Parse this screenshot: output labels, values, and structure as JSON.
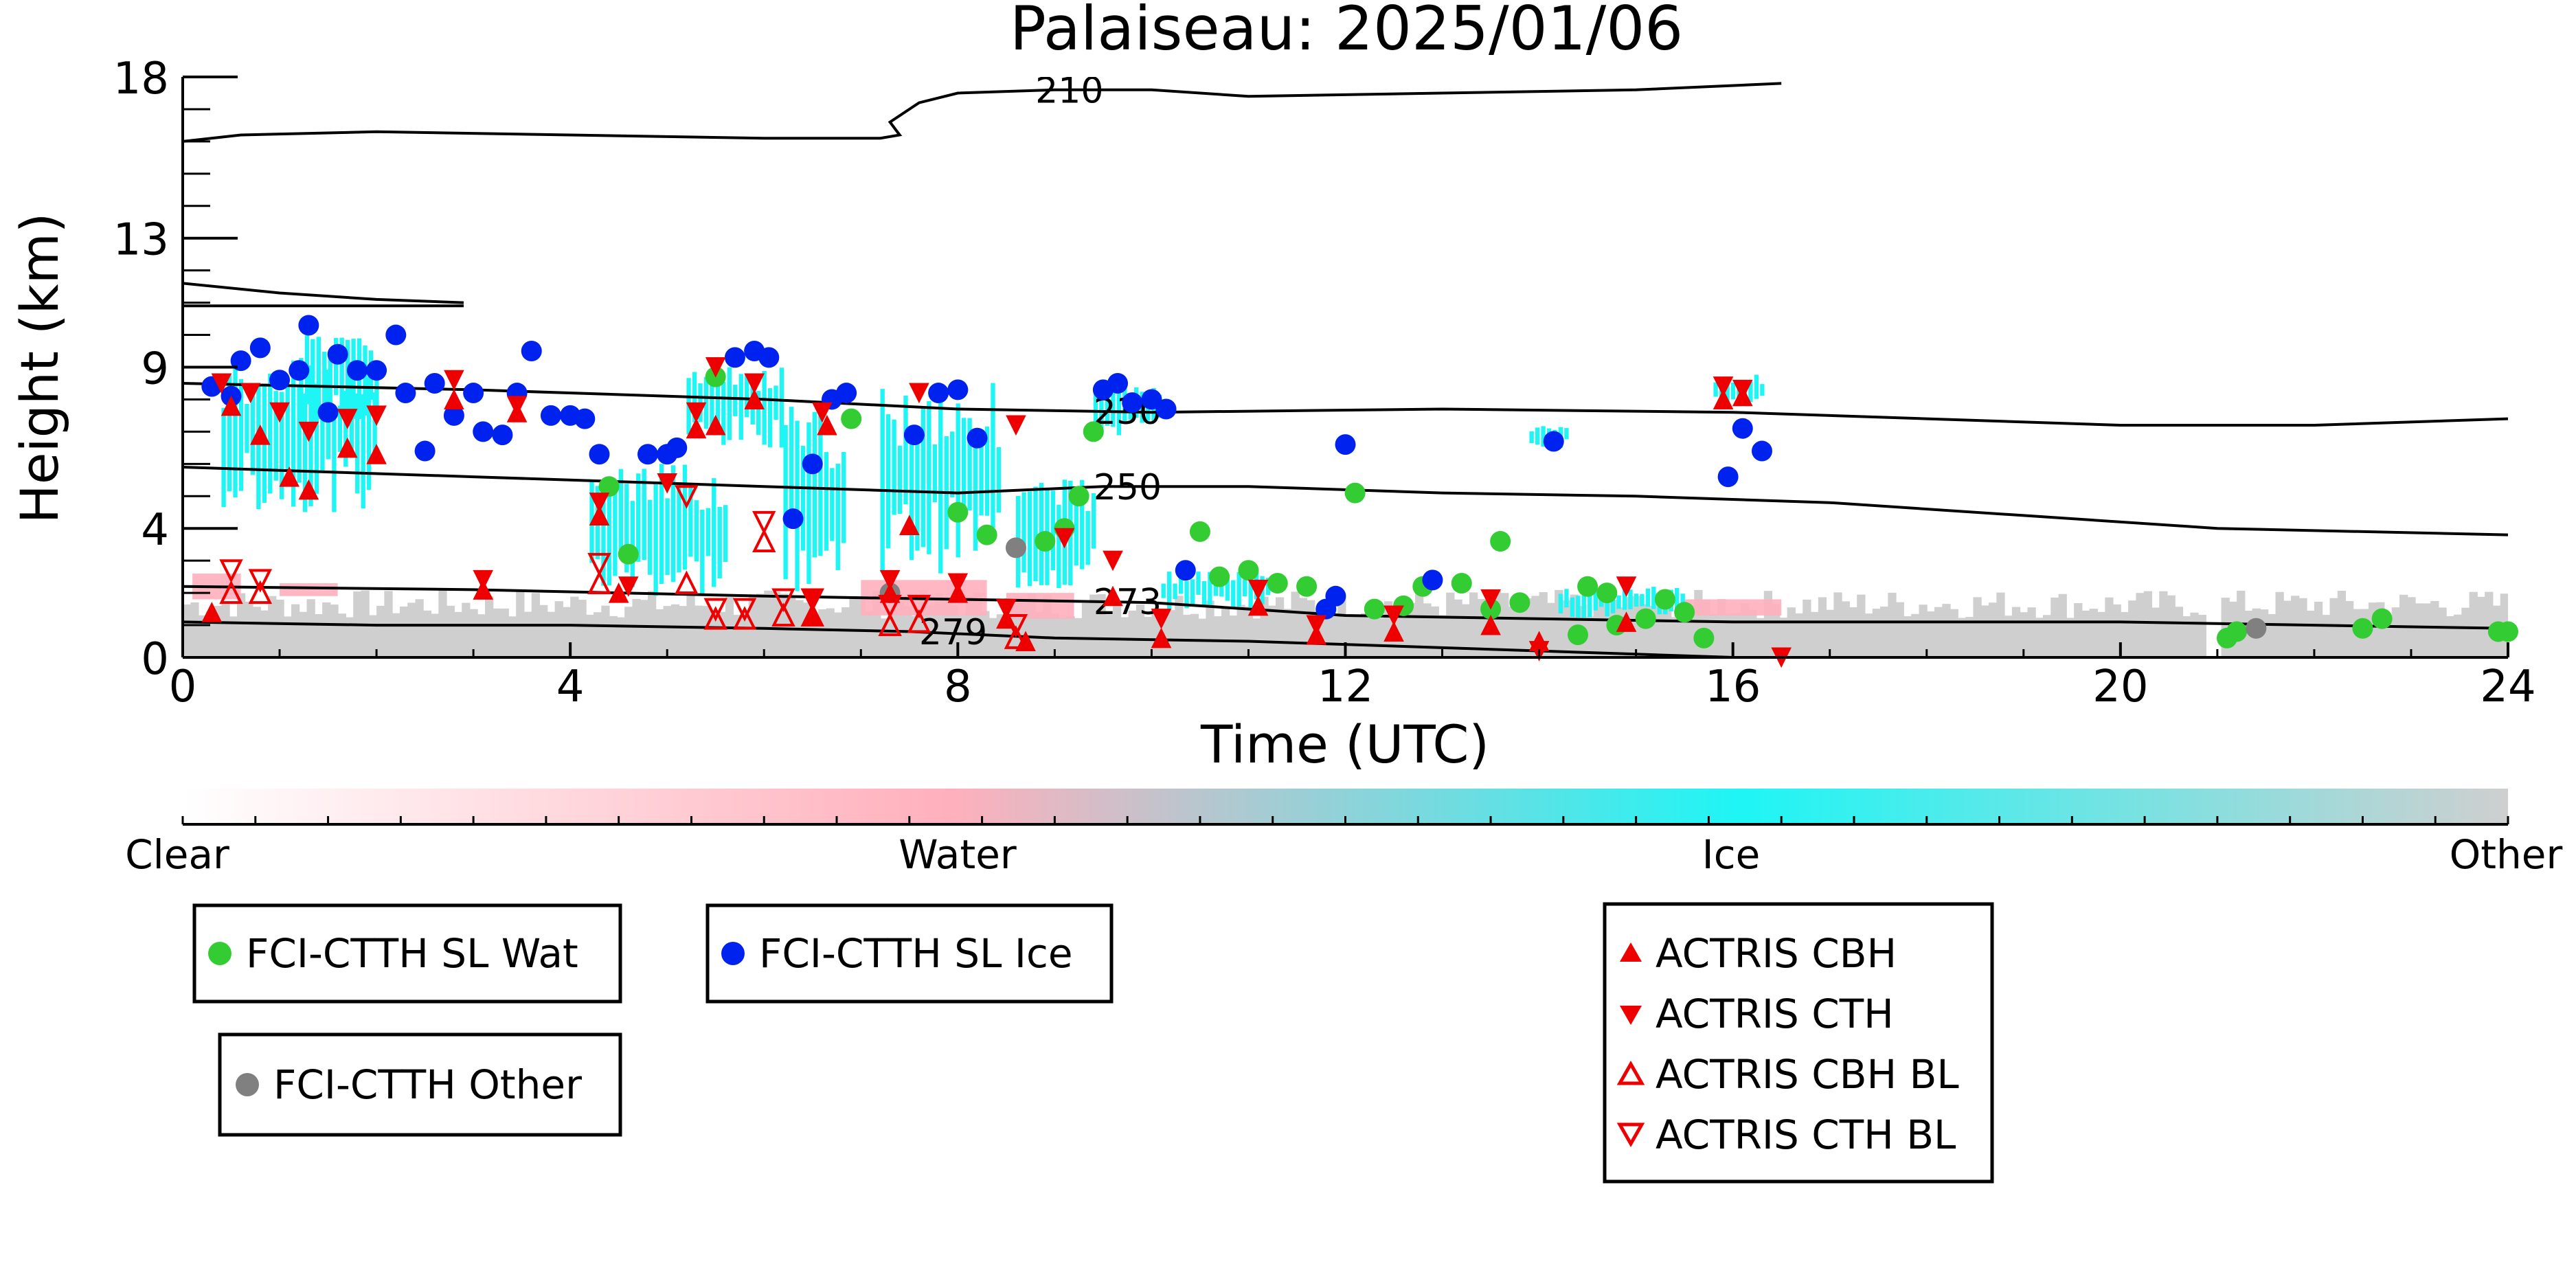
{
  "chart_data": {
    "type": "scatter",
    "title": "Palaiseau: 2025/01/06",
    "xlabel": "Time (UTC)",
    "ylabel": "Height (km)",
    "xlim": [
      0,
      24
    ],
    "ylim": [
      0,
      18
    ],
    "x_ticks": [
      "0",
      "4",
      "8",
      "12",
      "16",
      "20",
      "24"
    ],
    "y_ticks": [
      "0",
      "4",
      "9",
      "13",
      "18"
    ],
    "grid": false,
    "colorbar": {
      "labels": [
        "Clear",
        "Water",
        "Ice",
        "Other"
      ],
      "colors": [
        "#ffffff",
        "#ffb0bc",
        "#1ef5f5",
        "#cfcfcf"
      ]
    },
    "contours": [
      {
        "label": "210",
        "points": [
          [
            0,
            16.0
          ],
          [
            0.6,
            16.2
          ],
          [
            2,
            16.3
          ],
          [
            4,
            16.2
          ],
          [
            6,
            16.1
          ],
          [
            7.2,
            16.1
          ],
          [
            7.4,
            16.2
          ],
          [
            7.3,
            16.6
          ],
          [
            7.6,
            17.2
          ],
          [
            8,
            17.5
          ],
          [
            9,
            17.6
          ],
          [
            10,
            17.6
          ],
          [
            11,
            17.4
          ],
          [
            13,
            17.5
          ],
          [
            15,
            17.6
          ],
          [
            16.5,
            17.8
          ]
        ]
      },
      {
        "label": "",
        "points": [
          [
            0,
            11.6
          ],
          [
            1,
            11.3
          ],
          [
            2,
            11.1
          ],
          [
            2.9,
            11.0
          ]
        ]
      },
      {
        "label": "",
        "points": [
          [
            0,
            10.9
          ],
          [
            2,
            10.9
          ],
          [
            2.9,
            10.9
          ]
        ]
      },
      {
        "label": "230",
        "points": [
          [
            0,
            8.5
          ],
          [
            3,
            8.3
          ],
          [
            6,
            8.0
          ],
          [
            8,
            7.7
          ],
          [
            10,
            7.6
          ],
          [
            13,
            7.7
          ],
          [
            16,
            7.6
          ],
          [
            18,
            7.4
          ],
          [
            20,
            7.2
          ],
          [
            22,
            7.2
          ],
          [
            24,
            7.4
          ]
        ]
      },
      {
        "label": "250",
        "points": [
          [
            0,
            5.9
          ],
          [
            3,
            5.6
          ],
          [
            6,
            5.3
          ],
          [
            8,
            5.1
          ],
          [
            9.5,
            5.3
          ],
          [
            11,
            5.3
          ],
          [
            13,
            5.1
          ],
          [
            15,
            5.0
          ],
          [
            17,
            4.8
          ],
          [
            19,
            4.4
          ],
          [
            21,
            4.0
          ],
          [
            24,
            3.8
          ]
        ]
      },
      {
        "label": "273",
        "points": [
          [
            0,
            2.2
          ],
          [
            3,
            2.1
          ],
          [
            6,
            1.9
          ],
          [
            8,
            1.8
          ],
          [
            10,
            1.7
          ],
          [
            11,
            1.5
          ],
          [
            12,
            1.3
          ],
          [
            14,
            1.2
          ],
          [
            16,
            1.1
          ],
          [
            20,
            1.1
          ],
          [
            24,
            0.9
          ]
        ]
      },
      {
        "label": "279",
        "points": [
          [
            0,
            1.1
          ],
          [
            2,
            1.0
          ],
          [
            4,
            1.0
          ],
          [
            6,
            0.9
          ],
          [
            7.5,
            0.8
          ],
          [
            9,
            0.6
          ],
          [
            11,
            0.5
          ],
          [
            13,
            0.3
          ],
          [
            15,
            0.1
          ],
          [
            16,
            0.0
          ]
        ]
      }
    ],
    "series": [
      {
        "name": "FCI-CTTH SL Wat",
        "color": "#33cc33",
        "marker": "circle",
        "points": [
          [
            4.4,
            5.3
          ],
          [
            4.6,
            3.2
          ],
          [
            5.5,
            8.7
          ],
          [
            6.9,
            7.4
          ],
          [
            8.0,
            4.5
          ],
          [
            8.3,
            3.8
          ],
          [
            8.9,
            3.6
          ],
          [
            9.1,
            4.0
          ],
          [
            9.25,
            5.0
          ],
          [
            9.4,
            7.0
          ],
          [
            10.5,
            3.9
          ],
          [
            10.7,
            2.5
          ],
          [
            11.0,
            2.7
          ],
          [
            11.3,
            2.3
          ],
          [
            11.6,
            2.2
          ],
          [
            12.1,
            5.1
          ],
          [
            12.3,
            1.5
          ],
          [
            12.6,
            1.6
          ],
          [
            12.8,
            2.2
          ],
          [
            13.2,
            2.3
          ],
          [
            13.5,
            1.5
          ],
          [
            13.6,
            3.6
          ],
          [
            13.8,
            1.7
          ],
          [
            14.4,
            0.7
          ],
          [
            14.5,
            2.2
          ],
          [
            14.7,
            2.0
          ],
          [
            14.8,
            1.0
          ],
          [
            15.1,
            1.2
          ],
          [
            15.3,
            1.8
          ],
          [
            15.5,
            1.4
          ],
          [
            15.7,
            0.6
          ],
          [
            21.1,
            0.6
          ],
          [
            21.2,
            0.8
          ],
          [
            22.5,
            0.9
          ],
          [
            22.7,
            1.2
          ],
          [
            23.9,
            0.8
          ],
          [
            24.0,
            0.8
          ]
        ]
      },
      {
        "name": "FCI-CTTH SL Ice",
        "color": "#0022ee",
        "marker": "circle",
        "points": [
          [
            0.3,
            8.4
          ],
          [
            0.5,
            8.1
          ],
          [
            0.6,
            9.2
          ],
          [
            0.8,
            9.6
          ],
          [
            1.0,
            8.6
          ],
          [
            1.2,
            8.9
          ],
          [
            1.3,
            10.3
          ],
          [
            1.5,
            7.6
          ],
          [
            1.6,
            9.4
          ],
          [
            1.8,
            8.9
          ],
          [
            2.0,
            8.9
          ],
          [
            2.2,
            10.0
          ],
          [
            2.3,
            8.2
          ],
          [
            2.5,
            6.4
          ],
          [
            2.6,
            8.5
          ],
          [
            2.8,
            7.5
          ],
          [
            3.0,
            8.2
          ],
          [
            3.1,
            7.0
          ],
          [
            3.3,
            6.9
          ],
          [
            3.45,
            8.2
          ],
          [
            3.6,
            9.5
          ],
          [
            3.8,
            7.5
          ],
          [
            4.0,
            7.5
          ],
          [
            4.15,
            7.4
          ],
          [
            4.3,
            6.3
          ],
          [
            4.8,
            6.3
          ],
          [
            5.0,
            6.3
          ],
          [
            5.1,
            6.5
          ],
          [
            5.7,
            9.3
          ],
          [
            5.9,
            9.5
          ],
          [
            6.05,
            9.3
          ],
          [
            6.3,
            4.3
          ],
          [
            6.5,
            6.0
          ],
          [
            6.7,
            8.0
          ],
          [
            6.85,
            8.2
          ],
          [
            7.55,
            6.9
          ],
          [
            7.8,
            8.2
          ],
          [
            8.0,
            8.3
          ],
          [
            8.2,
            6.8
          ],
          [
            9.5,
            8.3
          ],
          [
            9.65,
            8.5
          ],
          [
            9.8,
            7.9
          ],
          [
            10.0,
            8.0
          ],
          [
            10.15,
            7.7
          ],
          [
            10.35,
            2.7
          ],
          [
            11.8,
            1.5
          ],
          [
            11.9,
            1.9
          ],
          [
            12.0,
            6.6
          ],
          [
            12.9,
            2.4
          ],
          [
            14.15,
            6.7
          ],
          [
            15.95,
            5.6
          ],
          [
            16.1,
            7.1
          ],
          [
            16.3,
            6.4
          ]
        ]
      },
      {
        "name": "FCI-CTTH Other",
        "color": "#808080",
        "marker": "circle",
        "points": [
          [
            7.3,
            2.0
          ],
          [
            8.6,
            3.4
          ],
          [
            21.4,
            0.9
          ]
        ]
      },
      {
        "name": "ACTRIS CBH",
        "color": "#ee0000",
        "marker": "triangle-up",
        "points": [
          [
            0.3,
            1.4
          ],
          [
            0.5,
            7.8
          ],
          [
            0.8,
            6.9
          ],
          [
            1.1,
            5.6
          ],
          [
            1.3,
            5.2
          ],
          [
            1.7,
            6.5
          ],
          [
            2.0,
            6.3
          ],
          [
            2.8,
            8.0
          ],
          [
            3.1,
            2.1
          ],
          [
            3.45,
            7.6
          ],
          [
            4.3,
            4.4
          ],
          [
            4.5,
            2.0
          ],
          [
            5.3,
            7.1
          ],
          [
            5.5,
            7.2
          ],
          [
            5.9,
            8.0
          ],
          [
            6.5,
            1.3
          ],
          [
            6.65,
            7.2
          ],
          [
            7.3,
            2.0
          ],
          [
            7.5,
            4.1
          ],
          [
            8.0,
            2.0
          ],
          [
            8.5,
            1.2
          ],
          [
            8.7,
            0.5
          ],
          [
            9.6,
            1.9
          ],
          [
            10.1,
            0.6
          ],
          [
            11.1,
            1.6
          ],
          [
            11.7,
            0.7
          ],
          [
            12.5,
            0.8
          ],
          [
            13.5,
            1.0
          ],
          [
            14.0,
            0.5
          ],
          [
            14.9,
            1.1
          ],
          [
            15.9,
            8.0
          ],
          [
            16.1,
            8.1
          ]
        ]
      },
      {
        "name": "ACTRIS CTH",
        "color": "#ee0000",
        "marker": "triangle-down",
        "points": [
          [
            0.4,
            8.5
          ],
          [
            0.7,
            8.2
          ],
          [
            1.0,
            7.6
          ],
          [
            1.3,
            7.0
          ],
          [
            1.7,
            7.4
          ],
          [
            2.0,
            7.5
          ],
          [
            2.8,
            8.6
          ],
          [
            3.1,
            2.4
          ],
          [
            3.45,
            7.8
          ],
          [
            4.3,
            4.8
          ],
          [
            4.6,
            2.2
          ],
          [
            5.0,
            5.4
          ],
          [
            5.3,
            7.6
          ],
          [
            5.5,
            9.0
          ],
          [
            5.9,
            8.5
          ],
          [
            6.5,
            1.8
          ],
          [
            6.6,
            7.6
          ],
          [
            7.3,
            2.4
          ],
          [
            7.6,
            8.2
          ],
          [
            8.0,
            2.3
          ],
          [
            8.5,
            1.5
          ],
          [
            8.6,
            7.2
          ],
          [
            9.1,
            3.7
          ],
          [
            9.6,
            3.0
          ],
          [
            10.1,
            1.2
          ],
          [
            11.1,
            2.1
          ],
          [
            11.7,
            1.0
          ],
          [
            12.5,
            1.3
          ],
          [
            13.5,
            1.8
          ],
          [
            14.0,
            0.2
          ],
          [
            14.9,
            2.2
          ],
          [
            15.9,
            8.4
          ],
          [
            16.1,
            8.3
          ],
          [
            16.5,
            0.0
          ]
        ]
      },
      {
        "name": "ACTRIS CBH BL",
        "color": "#ee0000",
        "marker": "triangle-up-open",
        "points": [
          [
            0.5,
            2.0
          ],
          [
            0.8,
            2.0
          ],
          [
            4.3,
            2.3
          ],
          [
            5.2,
            2.3
          ],
          [
            5.5,
            1.2
          ],
          [
            5.8,
            1.2
          ],
          [
            6.2,
            1.3
          ],
          [
            6.5,
            1.3
          ],
          [
            7.3,
            1.0
          ],
          [
            7.6,
            1.1
          ],
          [
            8.6,
            0.6
          ],
          [
            6.0,
            3.6
          ]
        ]
      },
      {
        "name": "ACTRIS CTH BL",
        "color": "#ee0000",
        "marker": "triangle-down-open",
        "points": [
          [
            0.5,
            2.7
          ],
          [
            0.8,
            2.4
          ],
          [
            4.3,
            2.9
          ],
          [
            5.2,
            5.0
          ],
          [
            5.5,
            1.5
          ],
          [
            5.8,
            1.5
          ],
          [
            6.2,
            1.8
          ],
          [
            6.5,
            1.8
          ],
          [
            7.3,
            1.6
          ],
          [
            7.6,
            1.6
          ],
          [
            8.6,
            1.0
          ],
          [
            6.0,
            4.2
          ]
        ]
      }
    ]
  }
}
